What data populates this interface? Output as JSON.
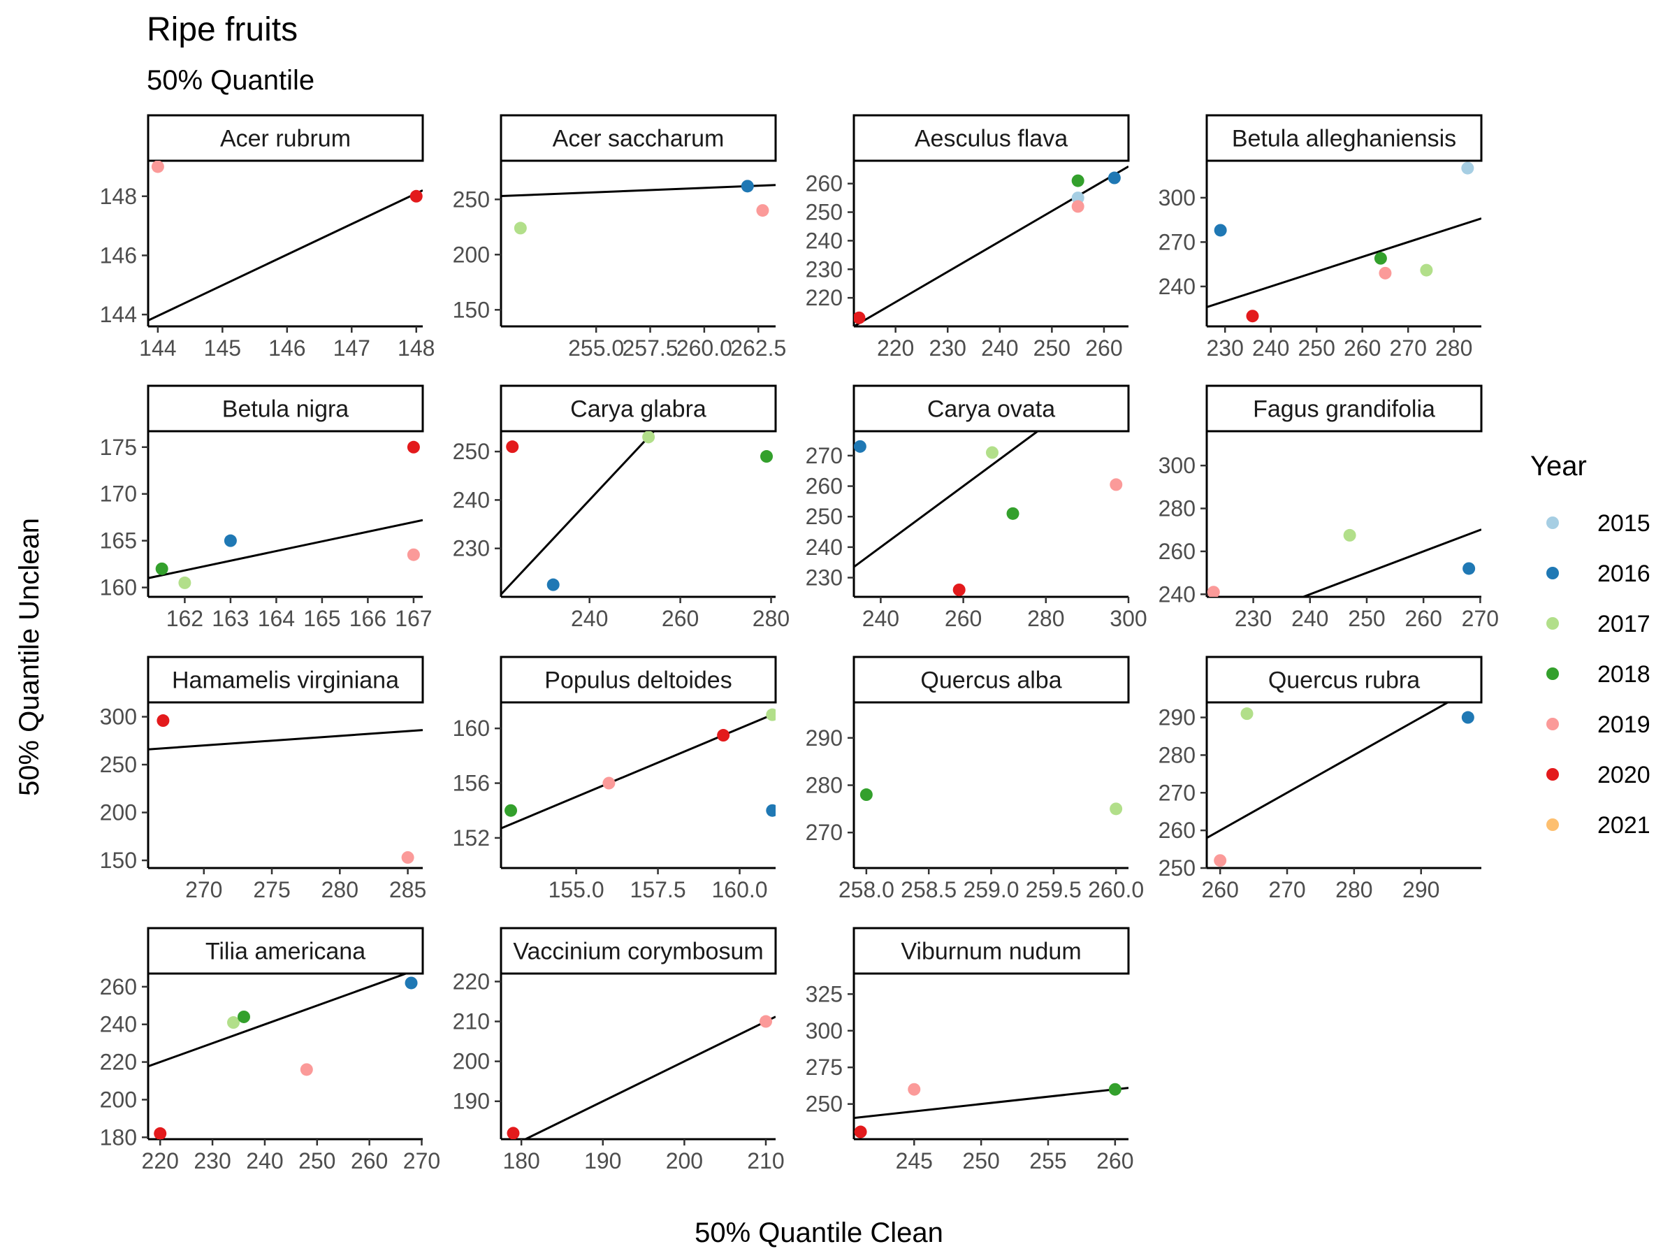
{
  "title": "Ripe fruits",
  "subtitle": "50% Quantile",
  "xlabel": "50% Quantile Clean",
  "ylabel": "50% Quantile Unclean",
  "legend": {
    "title": "Year",
    "placement": "right",
    "items": [
      {
        "label": "2015",
        "color": "#A6CEE3"
      },
      {
        "label": "2016",
        "color": "#1F78B4"
      },
      {
        "label": "2017",
        "color": "#B2DF8A"
      },
      {
        "label": "2018",
        "color": "#33A02C"
      },
      {
        "label": "2019",
        "color": "#FB9A99"
      },
      {
        "label": "2020",
        "color": "#E31A1C"
      },
      {
        "label": "2021",
        "color": "#FDBF6F"
      }
    ]
  },
  "chart_data": {
    "type": "scatter",
    "grid": false,
    "facets": [
      {
        "name": "Acer rubrum",
        "xlim": [
          143.85,
          148.1
        ],
        "ylim": [
          143.6,
          149.2
        ],
        "xticks": [
          144,
          145,
          146,
          147,
          148
        ],
        "yticks": [
          144,
          146,
          148
        ],
        "points": [
          {
            "x": 144,
            "y": 149,
            "year": "2019"
          },
          {
            "x": 148,
            "y": 148,
            "year": "2020"
          }
        ],
        "line": {
          "x": [
            143.85,
            148.1
          ],
          "y": [
            143.8,
            148.2
          ]
        }
      },
      {
        "name": "Acer saccharum",
        "xlim": [
          250.6,
          263.3
        ],
        "ylim": [
          135.0,
          285.0
        ],
        "xticks": [
          255.0,
          257.5,
          260.0,
          262.5
        ],
        "yticks": [
          150,
          200,
          250
        ],
        "xticklabels": [
          "255.0",
          "257.5",
          "260.0",
          "262.5"
        ],
        "points": [
          {
            "x": 251.5,
            "y": 224,
            "year": "2017"
          },
          {
            "x": 262.0,
            "y": 262,
            "year": "2016"
          },
          {
            "x": 262.7,
            "y": 240,
            "year": "2019"
          }
        ],
        "line": {
          "x": [
            250.6,
            263.3
          ],
          "y": [
            253,
            263
          ]
        }
      },
      {
        "name": "Aesculus flava",
        "xlim": [
          212.0,
          264.7
        ],
        "ylim": [
          210.0,
          268.0
        ],
        "xticks": [
          220,
          230,
          240,
          250,
          260
        ],
        "yticks": [
          220,
          230,
          240,
          250,
          260
        ],
        "points": [
          {
            "x": 213,
            "y": 213,
            "year": "2020"
          },
          {
            "x": 255,
            "y": 255,
            "year": "2015"
          },
          {
            "x": 255,
            "y": 252,
            "year": "2019"
          },
          {
            "x": 255,
            "y": 261,
            "year": "2018"
          },
          {
            "x": 262,
            "y": 262,
            "year": "2016"
          }
        ],
        "line": {
          "x": [
            212.0,
            264.7
          ],
          "y": [
            210.0,
            266.0
          ]
        }
      },
      {
        "name": "Betula alleghaniensis",
        "xlim": [
          226.0,
          286.0
        ],
        "ylim": [
          213.0,
          325.0
        ],
        "xticks": [
          230,
          240,
          250,
          260,
          270,
          280
        ],
        "yticks": [
          240,
          270,
          300
        ],
        "points": [
          {
            "x": 229,
            "y": 278,
            "year": "2016"
          },
          {
            "x": 236,
            "y": 220,
            "year": "2020"
          },
          {
            "x": 264,
            "y": 259,
            "year": "2018"
          },
          {
            "x": 265,
            "y": 249,
            "year": "2019"
          },
          {
            "x": 274,
            "y": 251,
            "year": "2017"
          },
          {
            "x": 283,
            "y": 320,
            "year": "2015"
          }
        ],
        "line": {
          "x": [
            226.0,
            286.0
          ],
          "y": [
            226.0,
            286.0
          ]
        }
      },
      {
        "name": "Betula nigra",
        "xlim": [
          161.2,
          167.2
        ],
        "ylim": [
          159.0,
          176.7
        ],
        "xticks": [
          162,
          163,
          164,
          165,
          166,
          167
        ],
        "yticks": [
          160,
          165,
          170,
          175
        ],
        "points": [
          {
            "x": 161.5,
            "y": 162,
            "year": "2018"
          },
          {
            "x": 162,
            "y": 160.5,
            "year": "2017"
          },
          {
            "x": 163,
            "y": 165,
            "year": "2016"
          },
          {
            "x": 167,
            "y": 175,
            "year": "2020"
          },
          {
            "x": 167,
            "y": 163.5,
            "year": "2019"
          }
        ],
        "line": {
          "x": [
            161.2,
            167.2
          ],
          "y": [
            161.0,
            167.2
          ]
        }
      },
      {
        "name": "Carya glabra",
        "xlim": [
          220.5,
          281.0
        ],
        "ylim": [
          220.0,
          254.2
        ],
        "xticks": [
          240,
          260,
          280
        ],
        "yticks": [
          230,
          240,
          250
        ],
        "points": [
          {
            "x": 223,
            "y": 251,
            "year": "2020"
          },
          {
            "x": 232,
            "y": 222.5,
            "year": "2016"
          },
          {
            "x": 253,
            "y": 253,
            "year": "2017"
          },
          {
            "x": 279,
            "y": 249,
            "year": "2018"
          }
        ],
        "line": {
          "x": [
            220.5,
            254.2
          ],
          "y": [
            220.5,
            254.2
          ]
        }
      },
      {
        "name": "Carya ovata",
        "xlim": [
          233.5,
          300.0
        ],
        "ylim": [
          223.7,
          278.0
        ],
        "xticks": [
          240,
          260,
          280,
          300
        ],
        "yticks": [
          230,
          240,
          250,
          260,
          270
        ],
        "points": [
          {
            "x": 235,
            "y": 273,
            "year": "2016"
          },
          {
            "x": 259,
            "y": 226,
            "year": "2020"
          },
          {
            "x": 267,
            "y": 271,
            "year": "2017"
          },
          {
            "x": 272,
            "y": 251,
            "year": "2018"
          },
          {
            "x": 297,
            "y": 260.5,
            "year": "2019"
          }
        ],
        "line": {
          "x": [
            233.5,
            278.0
          ],
          "y": [
            233.5,
            278.0
          ]
        }
      },
      {
        "name": "Fagus grandifolia",
        "xlim": [
          221.8,
          270.2
        ],
        "ylim": [
          238.8,
          316.0
        ],
        "xticks": [
          230,
          240,
          250,
          260,
          270
        ],
        "yticks": [
          240,
          260,
          280,
          300
        ],
        "points": [
          {
            "x": 223,
            "y": 241,
            "year": "2019"
          },
          {
            "x": 247,
            "y": 267.5,
            "year": "2017"
          },
          {
            "x": 268,
            "y": 252,
            "year": "2016"
          }
        ],
        "line": {
          "x": [
            238.8,
            270.2
          ],
          "y": [
            238.8,
            270.2
          ]
        }
      },
      {
        "name": "Hamamelis virginiana",
        "xlim": [
          265.9,
          286.1
        ],
        "ylim": [
          142.0,
          315.0
        ],
        "xticks": [
          270,
          275,
          280,
          285
        ],
        "yticks": [
          150,
          200,
          250,
          300
        ],
        "points": [
          {
            "x": 267,
            "y": 296,
            "year": "2020"
          },
          {
            "x": 285,
            "y": 153,
            "year": "2019"
          }
        ],
        "line": {
          "x": [
            265.9,
            286.1
          ],
          "y": [
            265.9,
            286.1
          ]
        }
      },
      {
        "name": "Populus deltoides",
        "xlim": [
          152.7,
          161.1
        ],
        "ylim": [
          149.8,
          161.9
        ],
        "xticks": [
          155.0,
          157.5,
          160.0
        ],
        "yticks": [
          152,
          156,
          160
        ],
        "xticklabels": [
          "155.0",
          "157.5",
          "160.0"
        ],
        "points": [
          {
            "x": 153,
            "y": 154,
            "year": "2018"
          },
          {
            "x": 156,
            "y": 156,
            "year": "2019"
          },
          {
            "x": 159.5,
            "y": 159.5,
            "year": "2020"
          },
          {
            "x": 161,
            "y": 161,
            "year": "2017"
          },
          {
            "x": 161,
            "y": 154,
            "year": "2016"
          }
        ],
        "line": {
          "x": [
            152.7,
            161.1
          ],
          "y": [
            152.7,
            161.1
          ]
        }
      },
      {
        "name": "Quercus alba",
        "xlim": [
          257.9,
          260.1
        ],
        "ylim": [
          262.5,
          297.5
        ],
        "xticks": [
          258.0,
          258.5,
          259.0,
          259.5,
          260.0
        ],
        "yticks": [
          270,
          280,
          290
        ],
        "xticklabels": [
          "258.0",
          "258.5",
          "259.0",
          "259.5",
          "260.0"
        ],
        "points": [
          {
            "x": 258,
            "y": 278,
            "year": "2018"
          },
          {
            "x": 260,
            "y": 275,
            "year": "2017"
          }
        ]
      },
      {
        "name": "Quercus rubra",
        "xlim": [
          258.0,
          299.0
        ],
        "ylim": [
          250.0,
          294.0
        ],
        "xticks": [
          260,
          270,
          280,
          290
        ],
        "yticks": [
          250,
          260,
          270,
          280,
          290
        ],
        "points": [
          {
            "x": 260,
            "y": 252,
            "year": "2019"
          },
          {
            "x": 264,
            "y": 291,
            "year": "2017"
          },
          {
            "x": 297,
            "y": 290,
            "year": "2016"
          }
        ],
        "line": {
          "x": [
            258.0,
            294.0
          ],
          "y": [
            258.0,
            294.0
          ]
        }
      },
      {
        "name": "Tilia americana",
        "xlim": [
          217.7,
          270.2
        ],
        "ylim": [
          179.0,
          267.0
        ],
        "xticks": [
          220,
          230,
          240,
          250,
          260,
          270
        ],
        "yticks": [
          180,
          200,
          220,
          240,
          260
        ],
        "points": [
          {
            "x": 220,
            "y": 182,
            "year": "2020"
          },
          {
            "x": 234,
            "y": 241,
            "year": "2017"
          },
          {
            "x": 236,
            "y": 244,
            "year": "2018"
          },
          {
            "x": 248,
            "y": 216,
            "year": "2019"
          },
          {
            "x": 268,
            "y": 262,
            "year": "2016"
          }
        ],
        "line": {
          "x": [
            217.7,
            267.0
          ],
          "y": [
            217.7,
            267.0
          ]
        }
      },
      {
        "name": "Vaccinium corymbosum",
        "xlim": [
          177.5,
          211.2
        ],
        "ylim": [
          180.5,
          222.0
        ],
        "xticks": [
          180,
          190,
          200,
          210
        ],
        "yticks": [
          190,
          200,
          210,
          220
        ],
        "points": [
          {
            "x": 179,
            "y": 182,
            "year": "2020"
          },
          {
            "x": 210,
            "y": 210,
            "year": "2019"
          }
        ],
        "line": {
          "x": [
            180.5,
            211.2
          ],
          "y": [
            180.5,
            211.2
          ]
        }
      },
      {
        "name": "Viburnum nudum",
        "xlim": [
          240.5,
          261.0
        ],
        "ylim": [
          226.0,
          339.0
        ],
        "xticks": [
          245,
          250,
          255,
          260
        ],
        "yticks": [
          250,
          275,
          300,
          325
        ],
        "points": [
          {
            "x": 241,
            "y": 231,
            "year": "2020"
          },
          {
            "x": 245,
            "y": 260,
            "year": "2019"
          },
          {
            "x": 260,
            "y": 260,
            "year": "2018"
          }
        ],
        "line": {
          "x": [
            240.5,
            261.0
          ],
          "y": [
            240.5,
            261.0
          ]
        }
      }
    ]
  }
}
